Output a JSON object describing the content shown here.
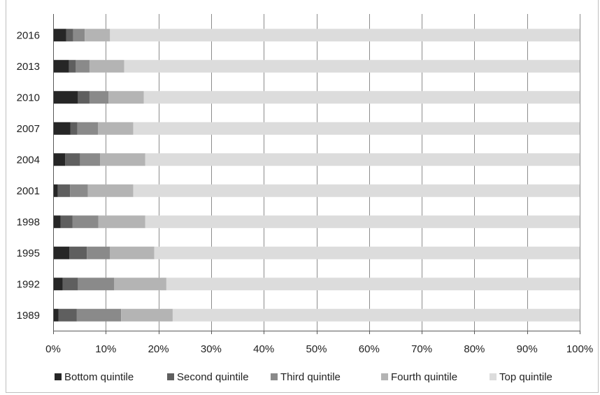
{
  "chart_data": {
    "type": "bar",
    "orientation": "horizontal",
    "stacked": true,
    "percent_stacked": true,
    "categories": [
      "2016",
      "2013",
      "2010",
      "2007",
      "2004",
      "2001",
      "1998",
      "1995",
      "1992",
      "1989"
    ],
    "series": [
      {
        "name": "Bottom quintile",
        "color": "#262626",
        "values": [
          2.5,
          3.0,
          4.7,
          3.3,
          2.3,
          0.9,
          1.4,
          3.1,
          1.8,
          1.0
        ]
      },
      {
        "name": "Second quintile",
        "color": "#5f5f5f",
        "values": [
          1.3,
          1.3,
          2.2,
          1.3,
          2.8,
          2.3,
          2.3,
          3.3,
          2.9,
          3.5
        ]
      },
      {
        "name": "Third quintile",
        "color": "#8a8a8a",
        "values": [
          2.2,
          2.6,
          3.6,
          3.9,
          3.8,
          3.4,
          4.9,
          4.4,
          6.9,
          8.4
        ]
      },
      {
        "name": "Fourth quintile",
        "color": "#b4b4b4",
        "values": [
          4.8,
          6.6,
          6.7,
          6.7,
          8.6,
          8.6,
          8.9,
          8.4,
          9.9,
          9.8
        ]
      },
      {
        "name": "Top quintile",
        "color": "#dcdcdc",
        "values": [
          89.2,
          86.5,
          82.8,
          84.8,
          82.5,
          84.8,
          82.5,
          80.8,
          78.5,
          77.3
        ]
      }
    ],
    "x_ticks": [
      "0%",
      "10%",
      "20%",
      "30%",
      "40%",
      "50%",
      "60%",
      "70%",
      "80%",
      "90%",
      "100%"
    ],
    "xlim": [
      0,
      100
    ],
    "grid": "vertical",
    "legend": "bottom"
  }
}
